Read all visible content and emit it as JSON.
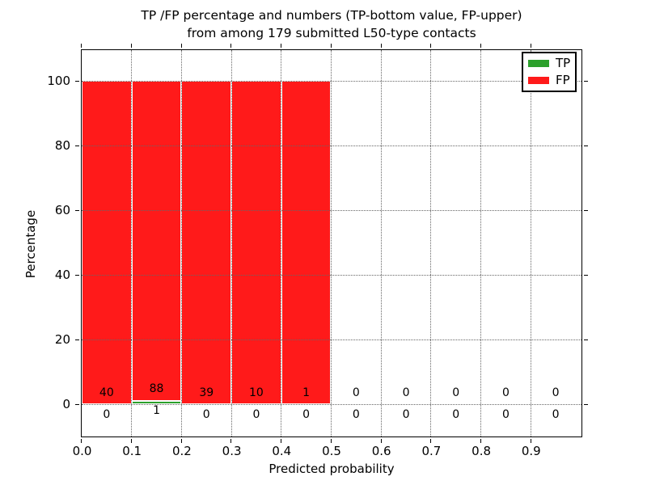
{
  "title": {
    "line1": "TP /FP percentage and numbers (TP-bottom value, FP-upper)",
    "line2": "from among 179 submitted L50-type contacts"
  },
  "axes": {
    "xlabel": "Predicted probability",
    "ylabel": "Percentage",
    "x_tick_labels": [
      "0.0",
      "0.1",
      "0.2",
      "0.3",
      "0.4",
      "0.5",
      "0.6",
      "0.7",
      "0.8",
      "0.9"
    ],
    "x_tick_values": [
      0.0,
      0.1,
      0.2,
      0.3,
      0.4,
      0.5,
      0.6,
      0.7,
      0.8,
      0.9
    ],
    "y_tick_labels": [
      "0",
      "20",
      "40",
      "60",
      "80",
      "100"
    ],
    "y_tick_values": [
      0,
      20,
      40,
      60,
      80,
      100
    ]
  },
  "legend": {
    "entries": [
      {
        "label": "TP",
        "color": "#2ca02c"
      },
      {
        "label": "FP",
        "color": "#ff1a1a"
      }
    ]
  },
  "chart_data": {
    "type": "bar",
    "stacked": true,
    "title": "TP /FP percentage and numbers (TP-bottom value, FP-upper) from among 179 submitted L50-type contacts",
    "xlabel": "Predicted probability",
    "ylabel": "Percentage",
    "xlim": [
      0.0,
      1.0
    ],
    "ylim": [
      0,
      100
    ],
    "grid": "dotted",
    "legend_position": "upper right",
    "total_submitted_contacts": 179,
    "bin_width": 0.1,
    "bin_starts": [
      0.0,
      0.1,
      0.2,
      0.3,
      0.4,
      0.5,
      0.6,
      0.7,
      0.8,
      0.9
    ],
    "series": [
      {
        "name": "TP",
        "color": "#2ca02c",
        "counts": [
          0,
          1,
          0,
          0,
          0,
          0,
          0,
          0,
          0,
          0
        ],
        "percentages": [
          0,
          1.12,
          0,
          0,
          0,
          0,
          0,
          0,
          0,
          0
        ]
      },
      {
        "name": "FP",
        "color": "#ff1a1a",
        "counts": [
          40,
          88,
          39,
          10,
          1,
          0,
          0,
          0,
          0,
          0
        ],
        "percentages": [
          100,
          98.88,
          100,
          100,
          100,
          0,
          0,
          0,
          0,
          0
        ]
      }
    ]
  }
}
